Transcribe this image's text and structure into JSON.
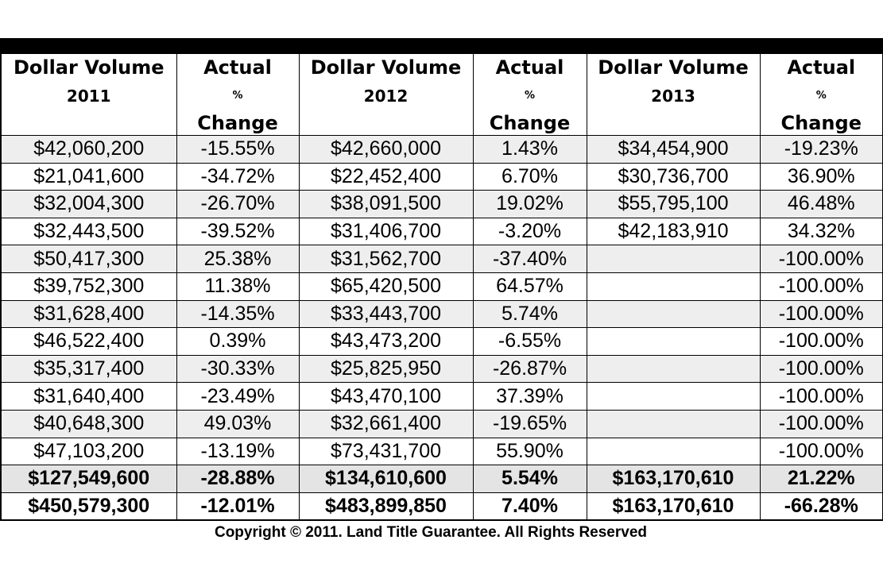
{
  "headers": [
    {
      "line1": "Dollar Volume",
      "line2": "2011"
    },
    {
      "line1": "Actual",
      "line2": "%",
      "line3": "Change"
    },
    {
      "line1": "Dollar Volume",
      "line2": "2012"
    },
    {
      "line1": "Actual",
      "line2": "%",
      "line3": "Change"
    },
    {
      "line1": "Dollar Volume",
      "line2": "2013"
    },
    {
      "line1": "Actual",
      "line2": "%",
      "line3": "Change"
    }
  ],
  "rows": [
    [
      "$42,060,200",
      "-15.55%",
      "$42,660,000",
      "1.43%",
      "$34,454,900",
      "-19.23%"
    ],
    [
      "$21,041,600",
      "-34.72%",
      "$22,452,400",
      "6.70%",
      "$30,736,700",
      "36.90%"
    ],
    [
      "$32,004,300",
      "-26.70%",
      "$38,091,500",
      "19.02%",
      "$55,795,100",
      "46.48%"
    ],
    [
      "$32,443,500",
      "-39.52%",
      "$31,406,700",
      "-3.20%",
      "$42,183,910",
      "34.32%"
    ],
    [
      "$50,417,300",
      "25.38%",
      "$31,562,700",
      "-37.40%",
      "",
      "-100.00%"
    ],
    [
      "$39,752,300",
      "11.38%",
      "$65,420,500",
      "64.57%",
      "",
      "-100.00%"
    ],
    [
      "$31,628,400",
      "-14.35%",
      "$33,443,700",
      "5.74%",
      "",
      "-100.00%"
    ],
    [
      "$46,522,400",
      "0.39%",
      "$43,473,200",
      "-6.55%",
      "",
      "-100.00%"
    ],
    [
      "$35,317,400",
      "-30.33%",
      "$25,825,950",
      "-26.87%",
      "",
      "-100.00%"
    ],
    [
      "$31,640,400",
      "-23.49%",
      "$43,470,100",
      "37.39%",
      "",
      "-100.00%"
    ],
    [
      "$40,648,300",
      "49.03%",
      "$32,661,400",
      "-19.65%",
      "",
      "-100.00%"
    ],
    [
      "$47,103,200",
      "-13.19%",
      "$73,431,700",
      "55.90%",
      "",
      "-100.00%"
    ]
  ],
  "subtotal": [
    "$127,549,600",
    "-28.88%",
    "$134,610,600",
    "5.54%",
    "$163,170,610",
    "21.22%"
  ],
  "total": [
    "$450,579,300",
    "-12.01%",
    "$483,899,850",
    "7.40%",
    "$163,170,610",
    "-66.28%"
  ],
  "copyright": "Copyright © 2011.  Land Title Guarantee.  All Rights Reserved"
}
